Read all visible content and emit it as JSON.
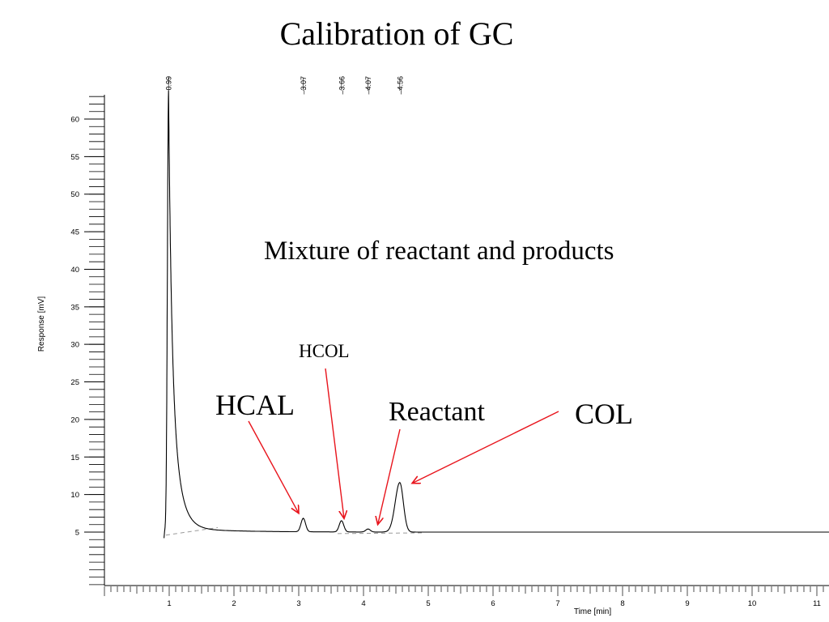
{
  "slide": {
    "title": "Calibration of GC"
  },
  "annotations": {
    "mixture": "Mixture of reactant and products",
    "hcol": "HCOL",
    "hcal": "HCAL",
    "reactant": "Reactant",
    "col": "COL"
  },
  "colors": {
    "trace": "#000000",
    "arrow": "#e8141c",
    "baseline": "#9a9a9a"
  },
  "chart_data": {
    "type": "line",
    "title": "",
    "xlabel": "Time [min]",
    "ylabel": "Response [mV]",
    "xlim": [
      0,
      11.2
    ],
    "ylim": [
      -3.5,
      63.5
    ],
    "x_ticks": [
      1,
      2,
      3,
      4,
      5,
      6,
      7,
      8,
      9,
      10,
      11
    ],
    "y_ticks": [
      5,
      10,
      15,
      20,
      25,
      30,
      35,
      40,
      45,
      50,
      55,
      60
    ],
    "grid": false,
    "baseline_mV": 5,
    "peaks": [
      {
        "label": "0.99",
        "time": 0.99,
        "height_mV": 63.2
      },
      {
        "label": "3.07",
        "time": 3.07,
        "height_mV": 6.8
      },
      {
        "label": "3.66",
        "time": 3.66,
        "height_mV": 6.5
      },
      {
        "label": "4.07",
        "time": 4.07,
        "height_mV": 5.4
      },
      {
        "label": "4.56",
        "time": 4.56,
        "height_mV": 11.6
      }
    ],
    "arrows": [
      {
        "label": "HCAL",
        "to_time": 3.0,
        "to_mV": 7.5
      },
      {
        "label": "HCOL",
        "to_time": 3.7,
        "to_mV": 6.8
      },
      {
        "label": "Reactant",
        "to_time": 4.22,
        "to_mV": 6.0
      },
      {
        "label": "COL",
        "to_time": 4.75,
        "to_mV": 11.5
      }
    ]
  }
}
